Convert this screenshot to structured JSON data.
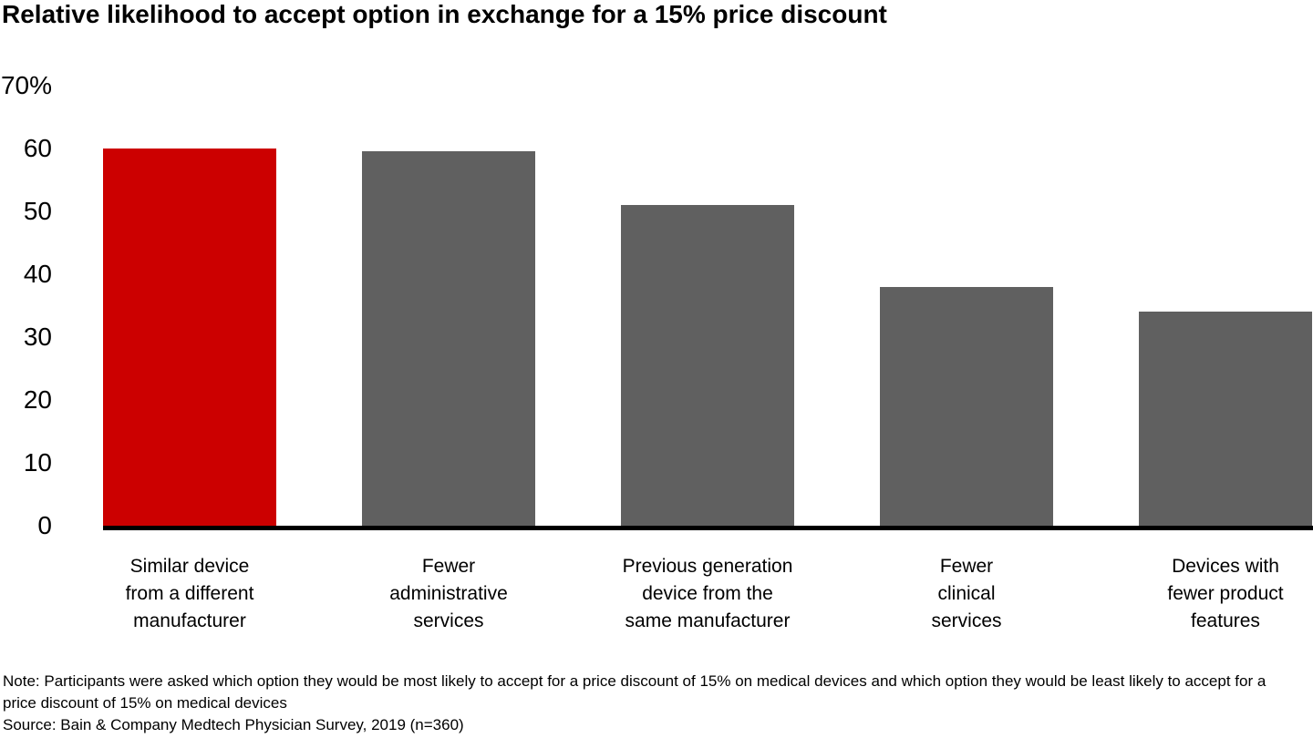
{
  "title": "Relative likelihood to accept option in exchange for a 15% price discount",
  "note": "Note: Participants were asked which option they would be most likely to accept for a price discount of 15% on medical devices and which option they would be least likely to accept for a price discount of 15% on medical devices",
  "source": "Source: Bain & Company Medtech Physician Survey, 2019 (n=360)",
  "colors": {
    "highlight_bar": "#cc0000",
    "default_bar": "#606060",
    "axis": "#000000",
    "text": "#000000",
    "background": "#ffffff"
  },
  "chart_data": {
    "type": "bar",
    "title": "Relative likelihood to accept option in exchange for a 15% price discount",
    "categories": [
      "Similar device from a different manufacturer",
      "Fewer administrative services",
      "Previous generation device from the same manufacturer",
      "Fewer clinical services",
      "Devices with fewer product features"
    ],
    "category_lines": [
      [
        "Similar device",
        "from a different",
        "manufacturer"
      ],
      [
        "Fewer",
        "administrative",
        "services"
      ],
      [
        "Previous generation",
        "device from the",
        "same manufacturer"
      ],
      [
        "Fewer",
        "clinical",
        "services"
      ],
      [
        "Devices with",
        "fewer product",
        "features"
      ]
    ],
    "values": [
      60,
      59.5,
      51,
      38,
      34
    ],
    "unit": "%",
    "highlight_index": 0,
    "xlabel": "",
    "ylabel": "",
    "ylim": [
      0,
      70
    ],
    "yticks": [
      0,
      10,
      20,
      30,
      40,
      50,
      60,
      70
    ],
    "ytick_labels": [
      "0",
      "10",
      "20",
      "30",
      "40",
      "50",
      "60",
      "70%"
    ],
    "grid": false,
    "legend_position": "none"
  }
}
